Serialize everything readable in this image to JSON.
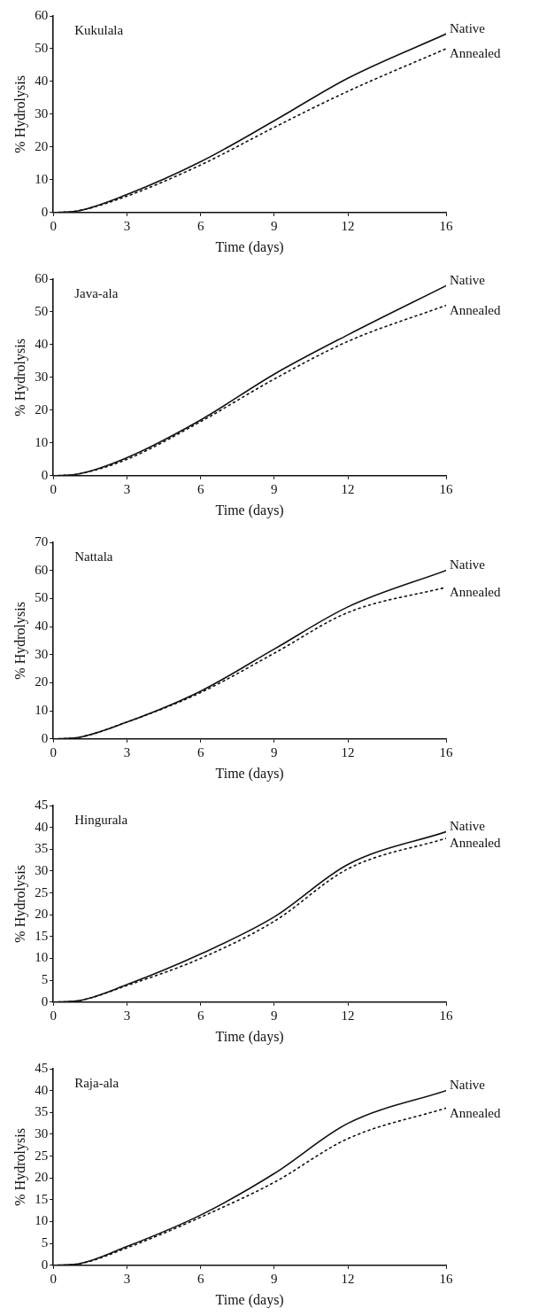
{
  "chart_data": [
    {
      "type": "line",
      "title": "Kukulala",
      "xlabel": "Time (days)",
      "ylabel": "% Hydrolysis",
      "x": [
        0,
        1,
        3,
        6,
        9,
        12,
        16
      ],
      "xlim": [
        0,
        16
      ],
      "xticks": [
        0,
        3,
        6,
        9,
        12,
        16
      ],
      "ylim": [
        0,
        60
      ],
      "yticks": [
        0,
        10,
        20,
        30,
        40,
        50,
        60
      ],
      "legend": false,
      "grid": false,
      "marker": "none",
      "series": [
        {
          "name": "Native",
          "color": "#111111",
          "line_style": "solid",
          "values": [
            0,
            0.5,
            5.5,
            15.5,
            28,
            41,
            54.5
          ]
        },
        {
          "name": "Annealed",
          "color": "#111111",
          "line_style": "dotted",
          "values": [
            0,
            0.5,
            5,
            14.5,
            26,
            37,
            50
          ]
        }
      ]
    },
    {
      "type": "line",
      "title": "Java-ala",
      "xlabel": "Time (days)",
      "ylabel": "% Hydrolysis",
      "x": [
        0,
        1,
        3,
        6,
        9,
        12,
        16
      ],
      "xlim": [
        0,
        16
      ],
      "xticks": [
        0,
        3,
        6,
        9,
        12,
        16
      ],
      "ylim": [
        0,
        60
      ],
      "yticks": [
        0,
        10,
        20,
        30,
        40,
        50,
        60
      ],
      "legend": false,
      "grid": false,
      "marker": "none",
      "series": [
        {
          "name": "Native",
          "color": "#111111",
          "line_style": "solid",
          "values": [
            0,
            0.5,
            5.5,
            17,
            31,
            43,
            58
          ]
        },
        {
          "name": "Annealed",
          "color": "#111111",
          "line_style": "dotted",
          "values": [
            0,
            0.5,
            5,
            16.5,
            29.5,
            41,
            52
          ]
        }
      ]
    },
    {
      "type": "line",
      "title": "Nattala",
      "xlabel": "Time (days)",
      "ylabel": "% Hydrolysis",
      "x": [
        0,
        1,
        3,
        6,
        9,
        12,
        16
      ],
      "xlim": [
        0,
        16
      ],
      "xticks": [
        0,
        3,
        6,
        9,
        12,
        16
      ],
      "ylim": [
        0,
        70
      ],
      "yticks": [
        0,
        10,
        20,
        30,
        40,
        50,
        60,
        70
      ],
      "legend": false,
      "grid": false,
      "marker": "none",
      "series": [
        {
          "name": "Native",
          "color": "#111111",
          "line_style": "solid",
          "values": [
            0,
            0.5,
            6,
            17,
            32,
            47,
            60
          ]
        },
        {
          "name": "Annealed",
          "color": "#111111",
          "line_style": "dotted",
          "values": [
            0,
            0.5,
            6,
            16.5,
            30.5,
            45,
            54
          ]
        }
      ]
    },
    {
      "type": "line",
      "title": "Hingurala",
      "xlabel": "Time (days)",
      "ylabel": "% Hydrolysis",
      "x": [
        0,
        1,
        3,
        6,
        9,
        12,
        16
      ],
      "xlim": [
        0,
        16
      ],
      "xticks": [
        0,
        3,
        6,
        9,
        12,
        16
      ],
      "ylim": [
        0,
        45
      ],
      "yticks": [
        0,
        5,
        10,
        15,
        20,
        25,
        30,
        35,
        40,
        45
      ],
      "legend": false,
      "grid": false,
      "marker": "none",
      "series": [
        {
          "name": "Native",
          "color": "#111111",
          "line_style": "solid",
          "values": [
            0,
            0.3,
            4,
            11,
            19.5,
            31.5,
            39
          ]
        },
        {
          "name": "Annealed",
          "color": "#111111",
          "line_style": "dotted",
          "values": [
            0,
            0.3,
            3.8,
            10,
            18.5,
            30.5,
            37.5
          ]
        }
      ]
    },
    {
      "type": "line",
      "title": "Raja-ala",
      "xlabel": "Time (days)",
      "ylabel": "% Hydrolysis",
      "x": [
        0,
        1,
        3,
        6,
        9,
        12,
        16
      ],
      "xlim": [
        0,
        16
      ],
      "xticks": [
        0,
        3,
        6,
        9,
        12,
        16
      ],
      "ylim": [
        0,
        45
      ],
      "yticks": [
        0,
        5,
        10,
        15,
        20,
        25,
        30,
        35,
        40,
        45
      ],
      "legend": false,
      "grid": false,
      "marker": "none",
      "series": [
        {
          "name": "Native",
          "color": "#111111",
          "line_style": "solid",
          "values": [
            0,
            0.3,
            4.3,
            11.5,
            21,
            32.5,
            40
          ]
        },
        {
          "name": "Annealed",
          "color": "#111111",
          "line_style": "dotted",
          "values": [
            0,
            0.3,
            4,
            11,
            19,
            29,
            36
          ]
        }
      ]
    }
  ]
}
